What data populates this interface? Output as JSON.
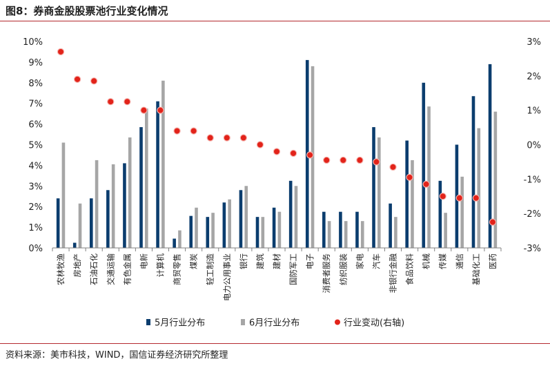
{
  "figure": {
    "title": "图8：券商金股股票池行业变化情况",
    "source": "资料来源：美市科技，WIND，国信证券经济研究所整理"
  },
  "chart_data": {
    "type": "bar",
    "categories": [
      "农林牧渔",
      "房地产",
      "石油石化",
      "交通运输",
      "有色金属",
      "电新",
      "计算机",
      "商贸零售",
      "煤炭",
      "轻工制造",
      "电力公用事业",
      "银行",
      "建筑",
      "建材",
      "国防军工",
      "电子",
      "消费者服务",
      "纺织服装",
      "家电",
      "汽车",
      "非银行金融",
      "食品饮料",
      "机械",
      "传媒",
      "通信",
      "基础化工",
      "医药"
    ],
    "series": [
      {
        "name": "5月行业分布",
        "type": "bar",
        "axis": "left",
        "color": "#0b3d6e",
        "values": [
          2.4,
          0.25,
          2.4,
          2.8,
          4.1,
          5.85,
          7.1,
          0.45,
          1.55,
          1.5,
          2.2,
          2.8,
          1.5,
          1.95,
          3.25,
          9.1,
          1.75,
          1.75,
          1.75,
          5.85,
          2.15,
          5.2,
          8.0,
          3.25,
          5.0,
          7.35,
          8.9
        ]
      },
      {
        "name": "6月行业分布",
        "type": "bar",
        "axis": "left",
        "color": "#a6a6a6",
        "values": [
          5.1,
          2.15,
          4.25,
          4.05,
          5.35,
          6.75,
          8.1,
          0.85,
          1.95,
          1.7,
          2.35,
          3.0,
          1.5,
          1.75,
          3.0,
          8.8,
          1.3,
          1.3,
          1.3,
          5.35,
          1.5,
          4.25,
          6.85,
          1.7,
          3.45,
          5.8,
          6.6
        ]
      },
      {
        "name": "行业变动(右轴)",
        "type": "scatter",
        "axis": "right",
        "color": "#e2231a",
        "values": [
          2.7,
          1.9,
          1.85,
          1.25,
          1.25,
          1.0,
          1.0,
          0.4,
          0.4,
          0.2,
          0.2,
          0.2,
          0.0,
          -0.2,
          -0.25,
          -0.3,
          -0.45,
          -0.45,
          -0.45,
          -0.5,
          -0.65,
          -0.95,
          -1.15,
          -1.5,
          -1.55,
          -1.55,
          -2.25
        ]
      }
    ],
    "y_left": {
      "min": 0,
      "max": 10,
      "ticks": [
        "0%",
        "1%",
        "2%",
        "3%",
        "4%",
        "5%",
        "6%",
        "7%",
        "8%",
        "9%",
        "10%"
      ]
    },
    "y_right": {
      "min": -3,
      "max": 3,
      "ticks": [
        "-3%",
        "-2%",
        "-1%",
        "0%",
        "1%",
        "2%",
        "3%"
      ]
    },
    "grid": false,
    "legend_position": "bottom"
  }
}
